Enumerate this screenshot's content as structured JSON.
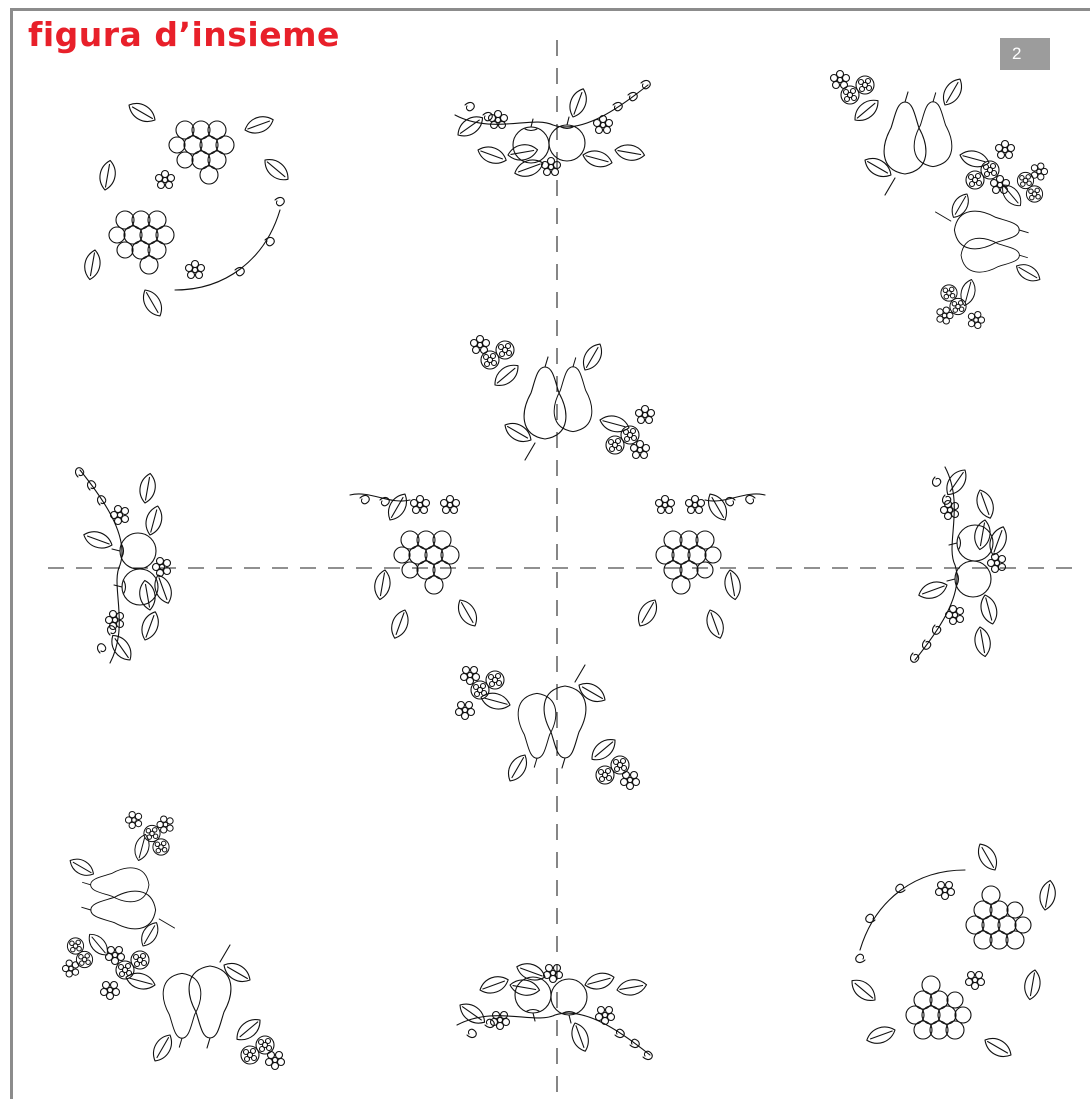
{
  "page": {
    "title": "figura d’insieme",
    "page_number": "2",
    "accent_color": "#e8202a",
    "badge_color": "#9c9c9c"
  },
  "motifs": [
    {
      "id": "grape-wreath-top-left",
      "icon": "grape-cluster-icon"
    },
    {
      "id": "apple-garland-top-center",
      "icon": "apple-icon"
    },
    {
      "id": "pear-berry-corner-top-right",
      "icon": "pear-icon"
    },
    {
      "id": "pear-berry-center-top",
      "icon": "pear-icon"
    },
    {
      "id": "apple-garland-left",
      "icon": "apple-icon"
    },
    {
      "id": "grape-cluster-center-left",
      "icon": "grape-cluster-icon"
    },
    {
      "id": "grape-cluster-center-right",
      "icon": "grape-cluster-icon"
    },
    {
      "id": "apple-garland-right",
      "icon": "apple-icon"
    },
    {
      "id": "pear-berry-center-bottom",
      "icon": "pear-icon"
    },
    {
      "id": "pear-berry-corner-bottom-left",
      "icon": "pear-icon"
    },
    {
      "id": "apple-garland-bottom-center",
      "icon": "apple-icon"
    },
    {
      "id": "grape-wreath-bottom-right",
      "icon": "grape-cluster-icon"
    }
  ]
}
